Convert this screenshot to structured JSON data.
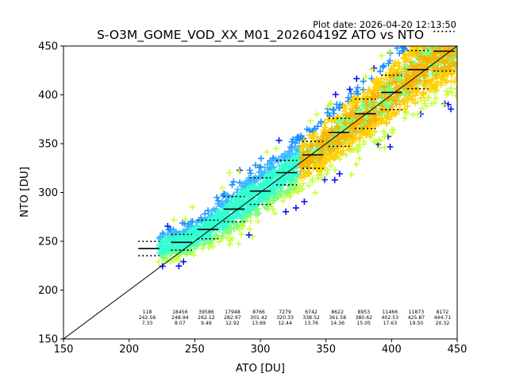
{
  "chart_data": {
    "type": "scatter",
    "title": "S-O3M_GOME_VOD_XX_M01_20260419Z ATO vs NTO",
    "plot_date": "Plot date: 2026-04-20 12:13:50",
    "xlabel": "ATO [DU]",
    "ylabel": "NTO [DU]",
    "xlim": [
      150,
      450
    ],
    "ylim": [
      150,
      450
    ],
    "x_ticks": [
      "150",
      "200",
      "250",
      "300",
      "350",
      "400",
      "450"
    ],
    "y_ticks": [
      "150",
      "200",
      "250",
      "300",
      "350",
      "400",
      "450"
    ],
    "grid": false,
    "reference_line": "one-to-one",
    "bins": [
      {
        "x": 215,
        "count": "118",
        "mean": "242.56",
        "std": "7.33"
      },
      {
        "x": 240,
        "count": "18456",
        "mean": "248.94",
        "std": "8.07"
      },
      {
        "x": 260,
        "count": "39586",
        "mean": "262.12",
        "std": "9.49"
      },
      {
        "x": 280,
        "count": "17948",
        "mean": "282.97",
        "std": "12.92"
      },
      {
        "x": 300,
        "count": "8766",
        "mean": "301.42",
        "std": "13.69"
      },
      {
        "x": 320,
        "count": "7279",
        "mean": "320.33",
        "std": "12.44"
      },
      {
        "x": 340,
        "count": "6742",
        "mean": "338.52",
        "std": "13.76"
      },
      {
        "x": 360,
        "count": "8622",
        "mean": "361.58",
        "std": "14.36"
      },
      {
        "x": 380,
        "count": "8953",
        "mean": "380.62",
        "std": "15.05"
      },
      {
        "x": 400,
        "count": "11466",
        "mean": "402.53",
        "std": "17.63"
      },
      {
        "x": 420,
        "count": "11873",
        "mean": "425.87",
        "std": "19.50"
      },
      {
        "x": 440,
        "count": "8172",
        "mean": "444.71",
        "std": "20.32"
      }
    ],
    "colors": {
      "density": [
        "#0a14f5",
        "#1e90ff",
        "#3cb8ff",
        "#33ffd0",
        "#7dff7a",
        "#c8ff40",
        "#ffd000",
        "#ffb000"
      ],
      "axes": "#000000"
    }
  }
}
